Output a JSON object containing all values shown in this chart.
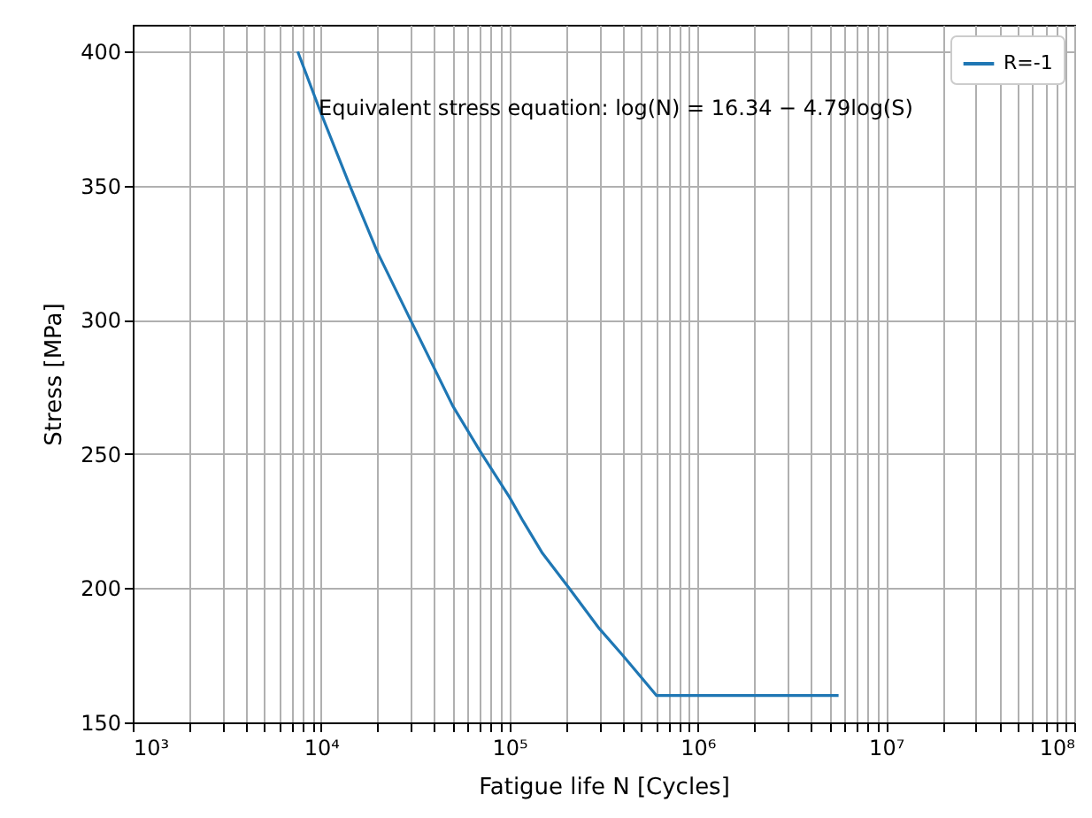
{
  "chart_data": {
    "type": "line",
    "xlabel": "Fatigue life N [Cycles]",
    "ylabel": "Stress [MPa]",
    "annotations": [
      "Equivalent stress equation: log(N) = 16.34 − 4.79log(S)"
    ],
    "series": [
      {
        "name": "R=-1",
        "color": "#1f77b4",
        "x": [
          7520,
          10000,
          14230,
          20000,
          29860,
          50000,
          71450,
          100000,
          118300,
          150000,
          207900,
          300000,
          400000,
          605000,
          5600000
        ],
        "values": [
          400,
          377,
          350,
          325,
          300,
          268,
          250,
          234,
          225,
          213,
          200,
          185,
          175,
          160,
          160
        ]
      }
    ],
    "log": "x",
    "xlim": [
      1000,
      100000000
    ],
    "xticks": [
      {
        "value": 1000,
        "label": "10³"
      },
      {
        "value": 2000,
        "label": null
      },
      {
        "value": 3000,
        "label": null
      },
      {
        "value": 4000,
        "label": null
      },
      {
        "value": 5000,
        "label": null
      },
      {
        "value": 6000,
        "label": null
      },
      {
        "value": 7000,
        "label": null
      },
      {
        "value": 8000,
        "label": null
      },
      {
        "value": 9000,
        "label": null
      },
      {
        "value": 10000,
        "label": "10⁴"
      },
      {
        "value": 20000,
        "label": null
      },
      {
        "value": 30000,
        "label": null
      },
      {
        "value": 40000,
        "label": null
      },
      {
        "value": 50000,
        "label": null
      },
      {
        "value": 60000,
        "label": null
      },
      {
        "value": 70000,
        "label": null
      },
      {
        "value": 80000,
        "label": null
      },
      {
        "value": 90000,
        "label": null
      },
      {
        "value": 100000,
        "label": "10⁵"
      },
      {
        "value": 200000,
        "label": null
      },
      {
        "value": 300000,
        "label": null
      },
      {
        "value": 400000,
        "label": null
      },
      {
        "value": 500000,
        "label": null
      },
      {
        "value": 600000,
        "label": null
      },
      {
        "value": 700000,
        "label": null
      },
      {
        "value": 800000,
        "label": null
      },
      {
        "value": 900000,
        "label": null
      },
      {
        "value": 1000000,
        "label": "10⁶"
      },
      {
        "value": 2000000,
        "label": null
      },
      {
        "value": 3000000,
        "label": null
      },
      {
        "value": 4000000,
        "label": null
      },
      {
        "value": 5000000,
        "label": null
      },
      {
        "value": 6000000,
        "label": null
      },
      {
        "value": 7000000,
        "label": null
      },
      {
        "value": 8000000,
        "label": null
      },
      {
        "value": 9000000,
        "label": null
      },
      {
        "value": 10000000,
        "label": "10⁷"
      },
      {
        "value": 20000000,
        "label": null
      },
      {
        "value": 30000000,
        "label": null
      },
      {
        "value": 40000000,
        "label": null
      },
      {
        "value": 50000000,
        "label": null
      },
      {
        "value": 60000000,
        "label": null
      },
      {
        "value": 70000000,
        "label": null
      },
      {
        "value": 80000000,
        "label": null
      },
      {
        "value": 90000000,
        "label": null
      },
      {
        "value": 100000000,
        "label": "10⁸"
      }
    ],
    "ylim": [
      150,
      410
    ],
    "yticks": [
      150,
      200,
      250,
      300,
      350,
      400
    ],
    "grid": true,
    "legend": "top right",
    "marker": "none",
    "line_style": "solid"
  }
}
